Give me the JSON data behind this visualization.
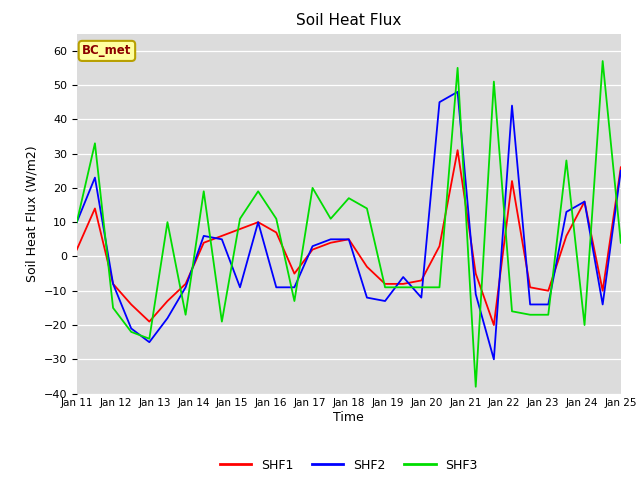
{
  "title": "Soil Heat Flux",
  "xlabel": "Time",
  "ylabel": "Soil Heat Flux (W/m2)",
  "ylim": [
    -40,
    65
  ],
  "yticks": [
    -40,
    -30,
    -20,
    -10,
    0,
    10,
    20,
    30,
    40,
    50,
    60
  ],
  "background_color": "#dcdcdc",
  "annotation_text": "BC_met",
  "annotation_bg": "#ffffa0",
  "annotation_border": "#b8a000",
  "annotation_text_color": "#8b0000",
  "x_labels": [
    "Jan 11",
    "Jan 12",
    "Jan 13",
    "Jan 14",
    "Jan 15",
    "Jan 16",
    "Jan 17",
    "Jan 18",
    "Jan 19",
    "Jan 20",
    "Jan 21",
    "Jan 22",
    "Jan 23",
    "Jan 24",
    "Jan 25"
  ],
  "shf1_color": "#ff0000",
  "shf2_color": "#0000ff",
  "shf3_color": "#00dd00",
  "shf1": [
    2,
    14,
    -8,
    -14,
    -19,
    -13,
    -8,
    4,
    6,
    8,
    10,
    7,
    -5,
    2,
    4,
    5,
    -3,
    -8,
    -8,
    -7,
    3,
    31,
    -5,
    -20,
    22,
    -9,
    -10,
    6,
    16,
    -10,
    26
  ],
  "shf2": [
    10,
    23,
    -8,
    -21,
    -25,
    -18,
    -9,
    6,
    5,
    -9,
    10,
    -9,
    -9,
    3,
    5,
    5,
    -12,
    -13,
    -6,
    -12,
    45,
    48,
    -11,
    -30,
    44,
    -14,
    -14,
    13,
    16,
    -14,
    25
  ],
  "shf3": [
    10,
    33,
    -15,
    -22,
    -24,
    10,
    -17,
    19,
    -19,
    11,
    19,
    11,
    -13,
    20,
    11,
    17,
    14,
    -9,
    -9,
    -9,
    -9,
    55,
    -38,
    51,
    -16,
    -17,
    -17,
    28,
    -20,
    57,
    4
  ],
  "n_days": 14,
  "n_points_shf1": 31,
  "n_points_shf2": 31,
  "n_points_shf3": 31
}
